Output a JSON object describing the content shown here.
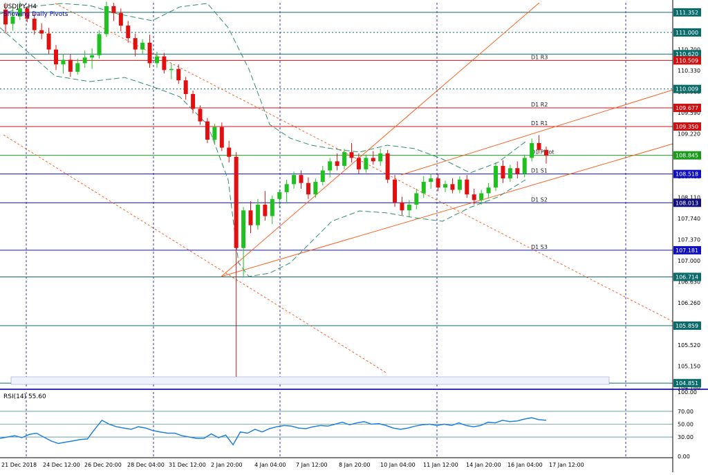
{
  "header": {
    "symbol": "USDJPY,H4",
    "subtitle": "Showing Daily Pivots"
  },
  "rsi": {
    "label": "RSI(14) 55.60",
    "ticks": [
      "100.00",
      "70.00",
      "50.00",
      "30.00",
      "0.00"
    ]
  },
  "chart_data": {
    "type": "candlestick",
    "symbol": "USDJPY",
    "timeframe": "H4",
    "price_axis_ticks": [
      "110.970",
      "110.700",
      "110.330",
      "109.960",
      "109.590",
      "109.220",
      "108.850",
      "108.480",
      "108.110",
      "107.740",
      "107.370",
      "107.000",
      "106.630",
      "106.260",
      "105.890",
      "105.520",
      "105.150",
      "104.780"
    ],
    "time_axis_labels": [
      "21 Dec 2018",
      "24 Dec 12:00",
      "26 Dec 20:00",
      "28 Dec 04:00",
      "31 Dec 12:00",
      "2 Jan 20:00",
      "4 Jan 04:00",
      "7 Jan 12:00",
      "8 Jan 20:00",
      "10 Jan 04:00",
      "11 Jan 12:00",
      "14 Jan 20:00",
      "16 Jan 04:00",
      "17 Jan 12:00"
    ],
    "levels": [
      {
        "price": "111.352",
        "color": "#0b6b6b",
        "style": "solid"
      },
      {
        "price": "111.000",
        "color": "#0b6b6b",
        "style": "dotted"
      },
      {
        "price": "110.620",
        "color": "#0b6b6b",
        "style": "solid"
      },
      {
        "price": "110.509",
        "label": "D1 R3",
        "color": "#d01010",
        "style": "solid"
      },
      {
        "price": "110.009",
        "color": "#0b6b6b",
        "style": "dotted"
      },
      {
        "price": "109.677",
        "label": "D1 R2",
        "color": "#d01010",
        "style": "solid"
      },
      {
        "price": "109.350",
        "label": "D1 R1",
        "color": "#d01010",
        "style": "solid"
      },
      {
        "price": "108.845",
        "label": "D1 Pivot",
        "color": "#1a9a1a",
        "style": "solid"
      },
      {
        "price": "108.518",
        "label": "D1 S1",
        "color": "#1010c0",
        "style": "solid"
      },
      {
        "price": "108.013",
        "label": "D1 S2",
        "color": "#101080",
        "style": "solid"
      },
      {
        "price": "107.181",
        "label": "D1 S3",
        "color": "#1010c0",
        "style": "solid"
      },
      {
        "price": "106.714",
        "color": "#0b6b6b",
        "style": "solid"
      },
      {
        "price": "105.859",
        "color": "#0b6b6b",
        "style": "solid"
      },
      {
        "price": "104.851",
        "color": "#0b6b6b",
        "style": "solid"
      }
    ],
    "candles_ohlc": [
      [
        111.4,
        111.52,
        110.98,
        111.14
      ],
      [
        111.15,
        111.46,
        111.03,
        111.28
      ],
      [
        111.28,
        111.54,
        111.22,
        111.42
      ],
      [
        111.42,
        111.46,
        111.18,
        111.24
      ],
      [
        111.24,
        111.34,
        110.96,
        111.04
      ],
      [
        111.04,
        111.16,
        110.88,
        110.98
      ],
      [
        110.98,
        111.08,
        110.62,
        110.7
      ],
      [
        110.7,
        110.78,
        110.34,
        110.44
      ],
      [
        110.44,
        110.62,
        110.28,
        110.52
      ],
      [
        110.52,
        110.62,
        110.22,
        110.31
      ],
      [
        110.31,
        110.54,
        110.26,
        110.46
      ],
      [
        110.46,
        110.68,
        110.38,
        110.56
      ],
      [
        110.56,
        110.72,
        110.36,
        110.6
      ],
      [
        110.6,
        111.04,
        110.54,
        110.97
      ],
      [
        110.97,
        111.54,
        110.92,
        111.46
      ],
      [
        111.46,
        111.52,
        111.2,
        111.34
      ],
      [
        111.34,
        111.42,
        111.02,
        111.12
      ],
      [
        111.12,
        111.2,
        110.82,
        110.9
      ],
      [
        110.9,
        110.98,
        110.58,
        110.7
      ],
      [
        110.7,
        110.88,
        110.62,
        110.82
      ],
      [
        110.82,
        110.96,
        110.38,
        110.46
      ],
      [
        110.46,
        110.66,
        110.38,
        110.58
      ],
      [
        110.58,
        110.64,
        110.28,
        110.34
      ],
      [
        110.34,
        110.46,
        110.18,
        110.36
      ],
      [
        110.36,
        110.44,
        110.1,
        110.16
      ],
      [
        110.16,
        110.22,
        109.82,
        109.92
      ],
      [
        109.92,
        109.98,
        109.58,
        109.66
      ],
      [
        109.66,
        109.72,
        109.38,
        109.44
      ],
      [
        109.44,
        109.5,
        109.06,
        109.12
      ],
      [
        109.12,
        109.4,
        109.04,
        109.34
      ],
      [
        109.34,
        109.42,
        108.92,
        108.98
      ],
      [
        108.98,
        109.1,
        108.72,
        108.82
      ],
      [
        108.82,
        108.9,
        104.85,
        107.22
      ],
      [
        107.22,
        107.94,
        106.7,
        107.88
      ],
      [
        107.88,
        108.04,
        107.48,
        107.62
      ],
      [
        107.62,
        108.08,
        107.54,
        107.98
      ],
      [
        107.98,
        108.22,
        107.7,
        107.78
      ],
      [
        107.78,
        108.14,
        107.64,
        108.08
      ],
      [
        108.08,
        108.24,
        107.92,
        108.2
      ],
      [
        108.2,
        108.42,
        108.0,
        108.34
      ],
      [
        108.34,
        108.56,
        108.26,
        108.5
      ],
      [
        108.5,
        108.58,
        108.26,
        108.36
      ],
      [
        108.36,
        108.46,
        108.08,
        108.16
      ],
      [
        108.16,
        108.44,
        108.1,
        108.38
      ],
      [
        108.38,
        108.66,
        108.32,
        108.58
      ],
      [
        108.58,
        108.8,
        108.46,
        108.74
      ],
      [
        108.74,
        108.88,
        108.58,
        108.66
      ],
      [
        108.66,
        108.96,
        108.6,
        108.9
      ],
      [
        108.9,
        109.06,
        108.72,
        108.8
      ],
      [
        108.8,
        108.88,
        108.52,
        108.6
      ],
      [
        108.6,
        108.86,
        108.54,
        108.8
      ],
      [
        108.8,
        108.92,
        108.68,
        108.74
      ],
      [
        108.74,
        108.96,
        108.66,
        108.88
      ],
      [
        108.88,
        108.94,
        108.36,
        108.42
      ],
      [
        108.42,
        108.5,
        107.94,
        108.02
      ],
      [
        108.02,
        108.12,
        107.8,
        107.88
      ],
      [
        107.88,
        108.06,
        107.76,
        107.98
      ],
      [
        107.98,
        108.26,
        107.9,
        108.18
      ],
      [
        108.18,
        108.48,
        108.1,
        108.38
      ],
      [
        108.38,
        108.52,
        108.26,
        108.44
      ],
      [
        108.44,
        108.52,
        108.22,
        108.28
      ],
      [
        108.28,
        108.4,
        108.2,
        108.34
      ],
      [
        108.34,
        108.44,
        108.18,
        108.24
      ],
      [
        108.24,
        108.48,
        108.18,
        108.42
      ],
      [
        108.42,
        108.5,
        108.1,
        108.16
      ],
      [
        108.16,
        108.26,
        107.98,
        108.06
      ],
      [
        108.06,
        108.24,
        107.98,
        108.18
      ],
      [
        108.18,
        108.36,
        108.1,
        108.28
      ],
      [
        108.28,
        108.72,
        108.22,
        108.66
      ],
      [
        108.66,
        108.76,
        108.36,
        108.44
      ],
      [
        108.44,
        108.68,
        108.38,
        108.62
      ],
      [
        108.62,
        108.74,
        108.44,
        108.52
      ],
      [
        108.52,
        108.86,
        108.46,
        108.8
      ],
      [
        108.8,
        109.14,
        108.74,
        109.06
      ],
      [
        109.06,
        109.2,
        108.88,
        108.94
      ],
      [
        108.94,
        109.0,
        108.7,
        108.84
      ]
    ],
    "rsi_values": [
      28,
      30,
      32,
      29,
      34,
      36,
      30,
      24,
      20,
      22,
      24,
      26,
      27,
      42,
      56,
      50,
      46,
      44,
      42,
      46,
      44,
      40,
      38,
      36,
      36,
      32,
      30,
      28,
      28,
      35,
      29,
      33,
      18,
      38,
      36,
      42,
      38,
      43,
      46,
      48,
      47,
      44,
      43,
      46,
      48,
      47,
      50,
      53,
      49,
      52,
      54,
      50,
      51,
      48,
      44,
      42,
      44,
      47,
      49,
      50,
      48,
      50,
      48,
      52,
      48,
      46,
      48,
      53,
      52,
      56,
      54,
      55,
      58,
      60,
      57,
      56
    ],
    "rsi_range": [
      0,
      100
    ]
  }
}
